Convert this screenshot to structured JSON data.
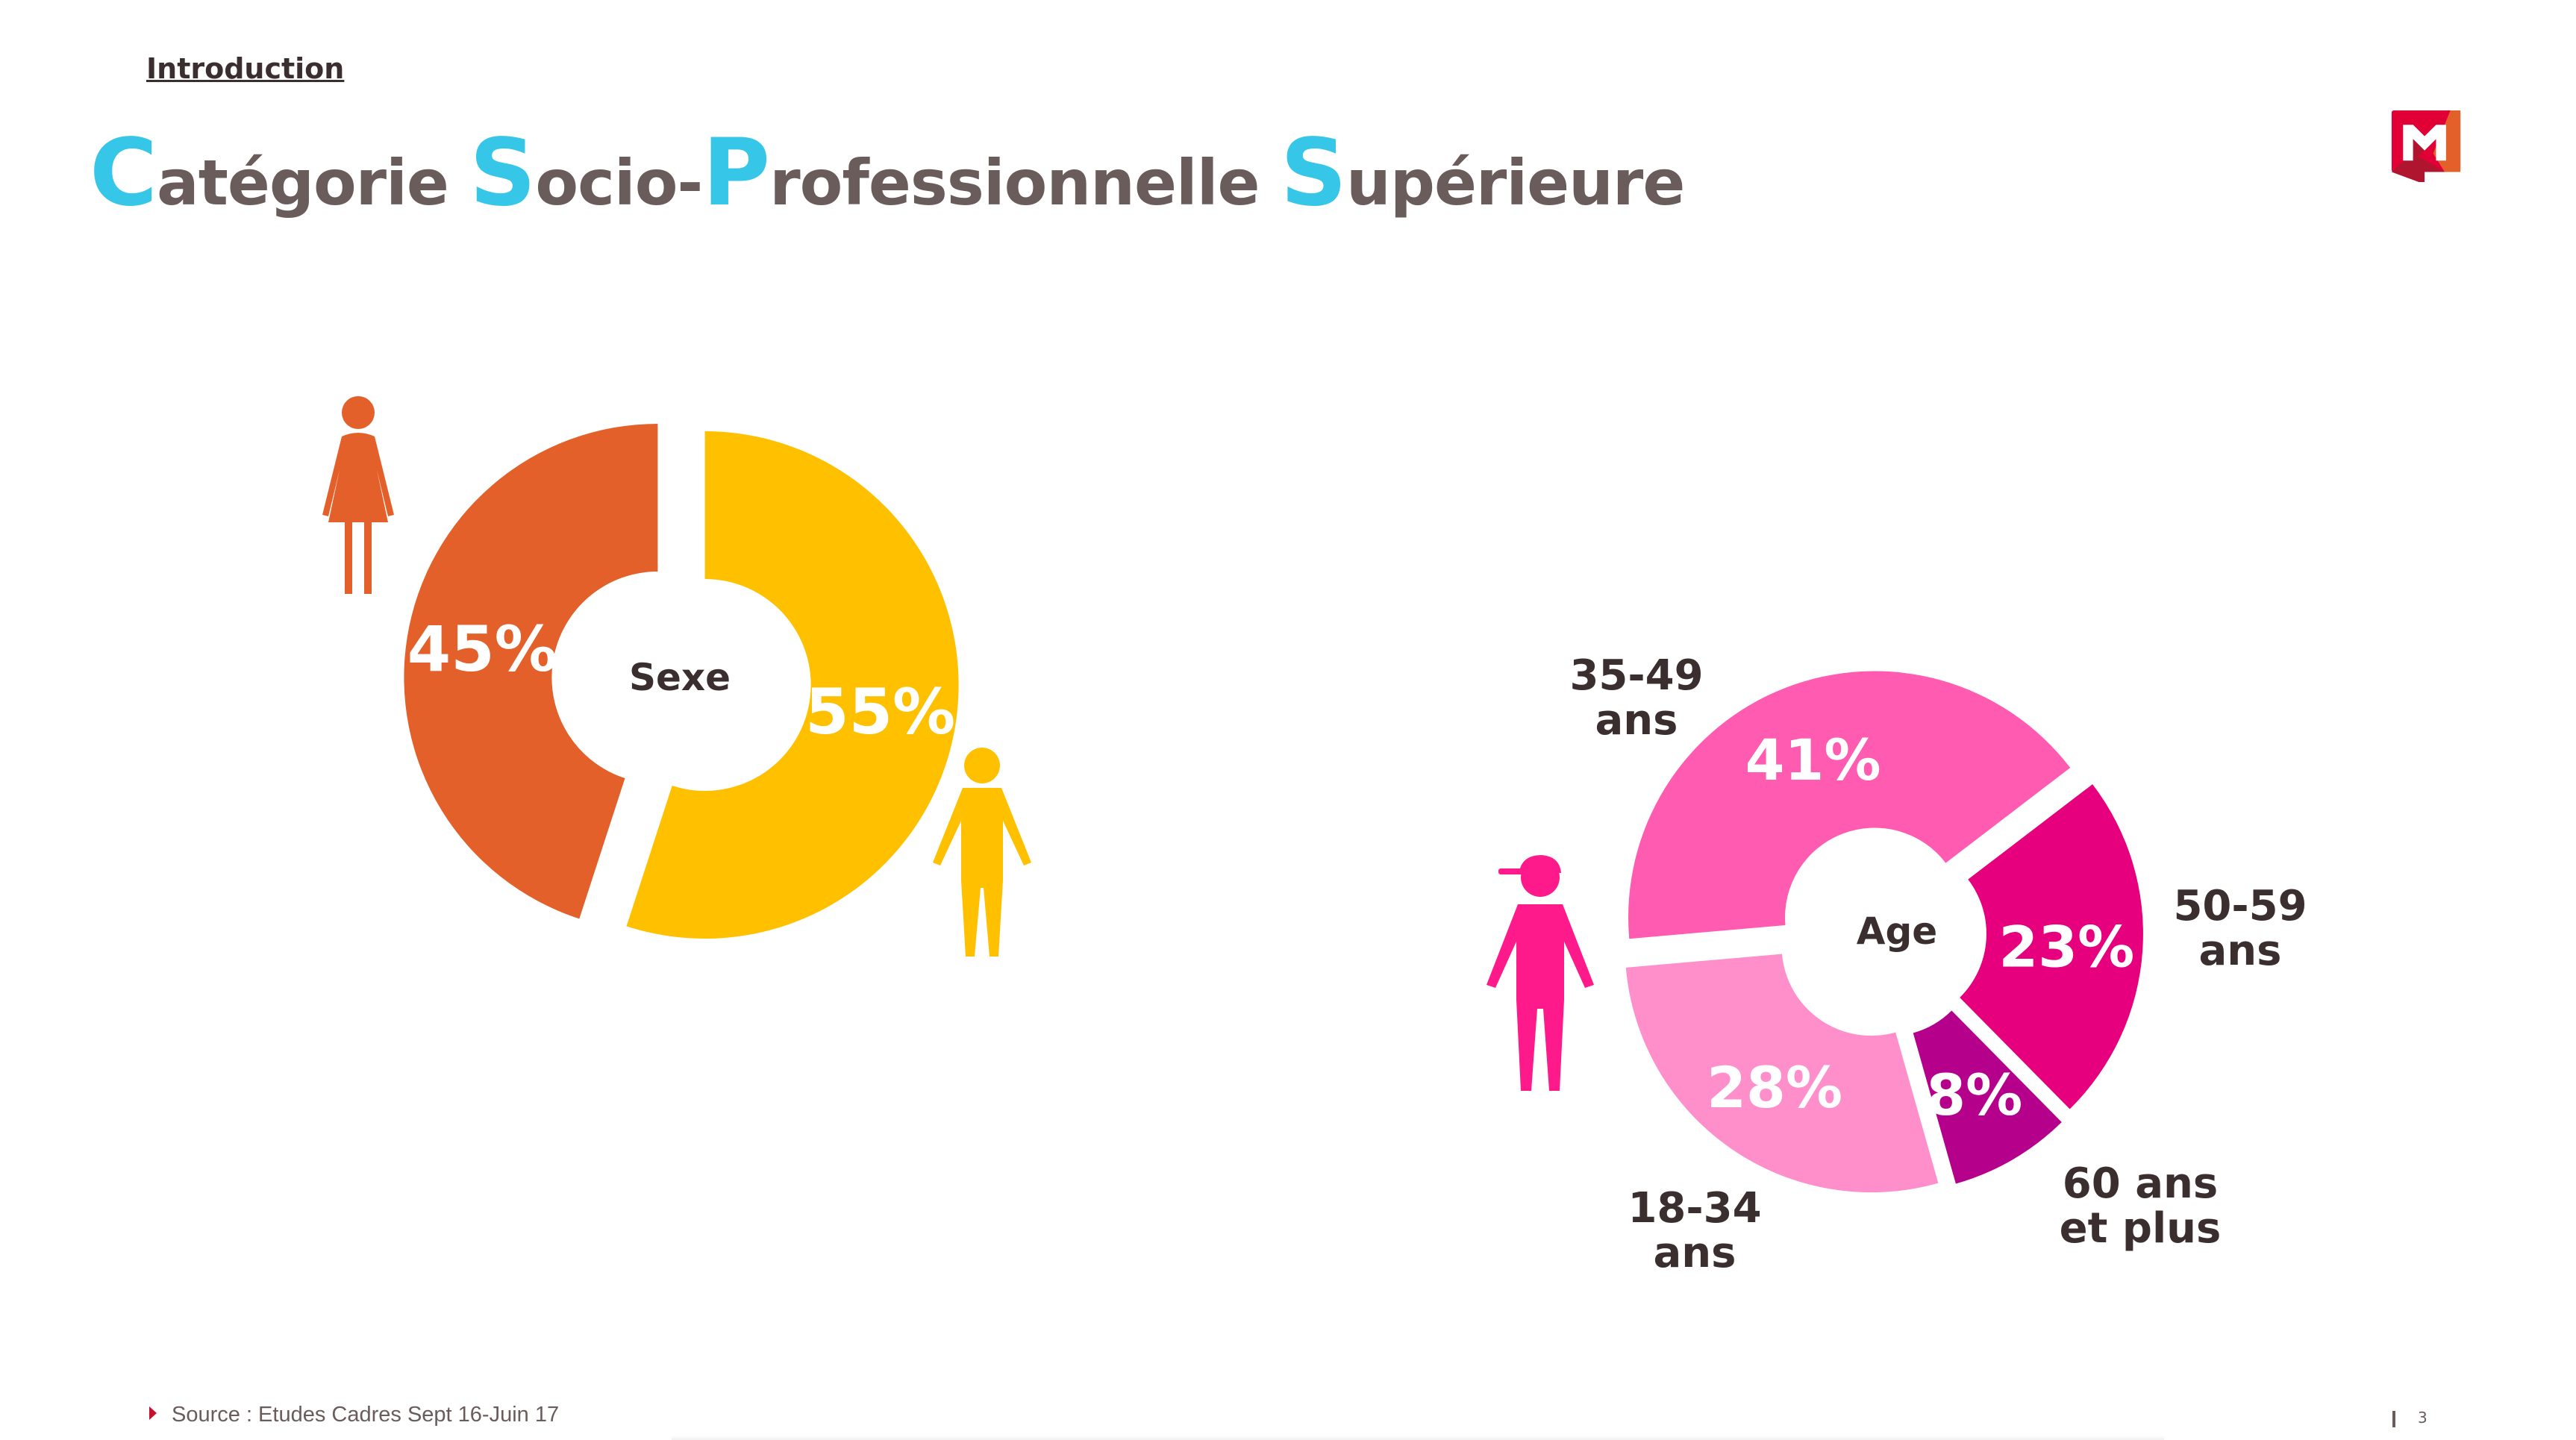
{
  "header": {
    "section": "Introduction",
    "title_parts": [
      {
        "cap": "C",
        "rest": "atégorie "
      },
      {
        "cap": "S",
        "rest": "ocio-"
      },
      {
        "cap": "P",
        "rest": "rofessionnelle "
      },
      {
        "cap": "S",
        "rest": "upérieure"
      }
    ]
  },
  "logo": {
    "icon": "brand-m-logo-icon",
    "colors": [
      "#e10035",
      "#e4602a",
      "#b01530"
    ]
  },
  "chart_data": [
    {
      "type": "pie",
      "title": "Sexe",
      "slices": [
        {
          "name": "Femmes",
          "value": 45,
          "label": "45%",
          "color": "#e4602a"
        },
        {
          "name": "Hommes",
          "value": 55,
          "label": "55%",
          "color": "#ffc000"
        }
      ]
    },
    {
      "type": "pie",
      "title": "Age",
      "slices": [
        {
          "name": "35-49 ans",
          "value": 41,
          "label": "41%",
          "color": "#ff5bb0"
        },
        {
          "name": "50-59 ans",
          "value": 23,
          "label": "23%",
          "color": "#e6007e"
        },
        {
          "name": "60 ans et plus",
          "value": 8,
          "label": "8%",
          "color": "#b5008c"
        },
        {
          "name": "18-34 ans",
          "value": 28,
          "label": "28%",
          "color": "#ff8fcb"
        }
      ],
      "category_labels": [
        "35-49\nans",
        "50-59\nans",
        "60 ans\net plus",
        "18-34\nans"
      ]
    }
  ],
  "footer": {
    "source": "Source : Etudes Cadres Sept 16-Juin 17",
    "page": "3"
  }
}
